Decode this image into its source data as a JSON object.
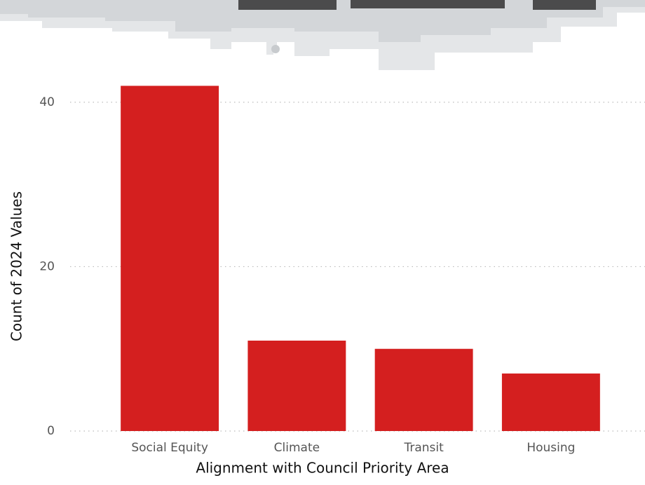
{
  "chart_data": {
    "type": "bar",
    "x_label": "Alignment with Council Priority Area",
    "y_label": "Count of 2024 Values",
    "categories": [
      "Social Equity",
      "Climate",
      "Transit",
      "Housing"
    ],
    "values": [
      42,
      11,
      10,
      7
    ],
    "color": "#d41f1f",
    "ylim": [
      0,
      44
    ],
    "yticks": [
      0,
      20,
      40
    ],
    "grid": true
  }
}
